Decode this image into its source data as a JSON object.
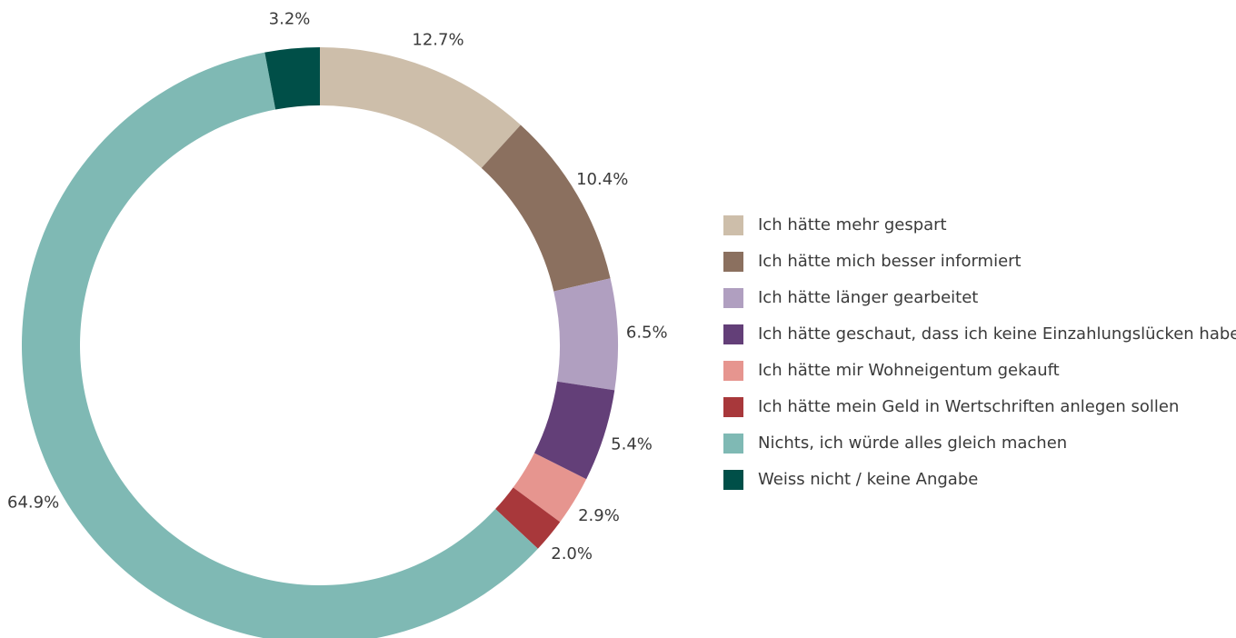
{
  "chart_data": {
    "type": "donut",
    "categories": [
      "Ich hätte mehr gespart",
      "Ich hätte mich besser informiert",
      "Ich hätte länger gearbeitet",
      "Ich hätte geschaut, dass ich keine Einzahlungslücken habe",
      "Ich hätte mir Wohneigentum gekauft",
      "Ich hätte mein Geld in Wertschriften anlegen sollen",
      "Nichts, ich würde alles gleich machen",
      "Weiss nicht / keine Angabe"
    ],
    "values": [
      12.7,
      10.4,
      6.5,
      5.4,
      2.9,
      2.0,
      64.9,
      3.2
    ],
    "value_labels": [
      "12.7%",
      "10.4%",
      "6.5%",
      "5.4%",
      "2.9%",
      "2.0%",
      "64.9%",
      "3.2%"
    ],
    "colors": [
      "#cdbeaa",
      "#8b705f",
      "#b09fc0",
      "#633f78",
      "#e6958f",
      "#a8383b",
      "#7fb9b4",
      "#004f48"
    ],
    "legend": "right"
  }
}
